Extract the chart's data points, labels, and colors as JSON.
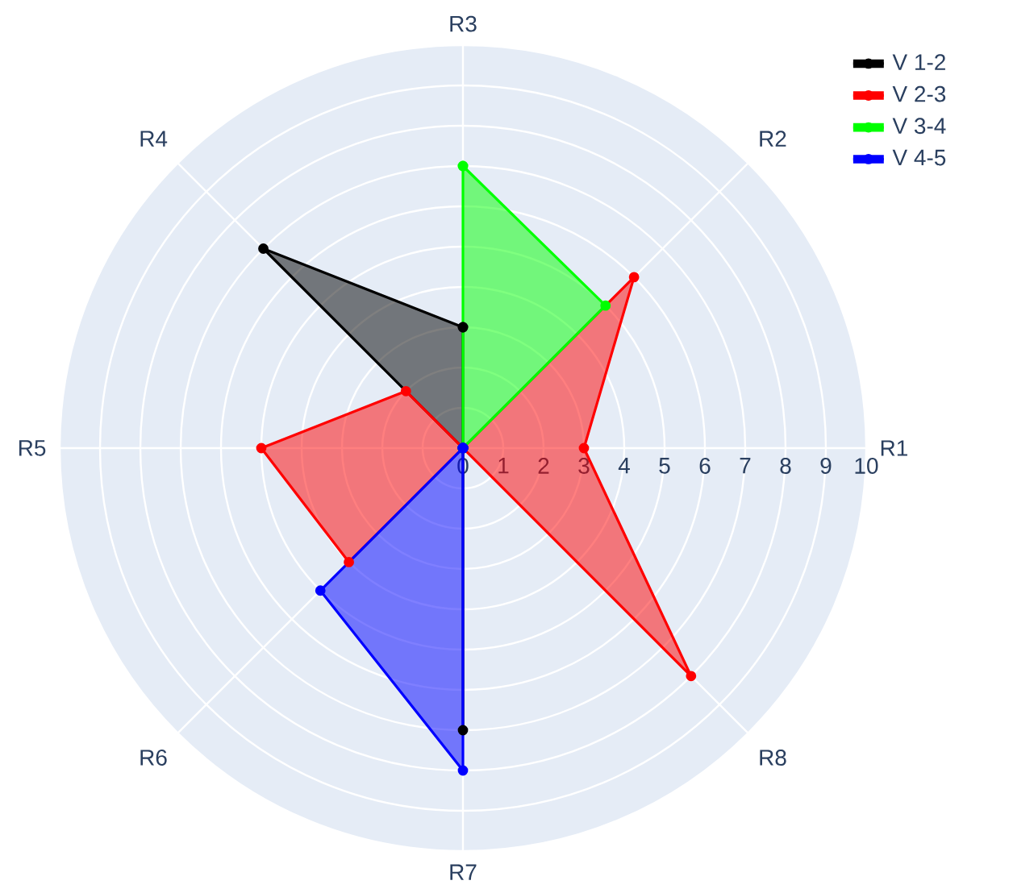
{
  "chart_data": {
    "type": "radar",
    "categories": [
      "R3",
      "R2",
      "R1",
      "R8",
      "R7",
      "R6",
      "R5",
      "R4"
    ],
    "series": [
      {
        "name": "V 1-2",
        "color": "#000000",
        "values": [
          3,
          0,
          0,
          0,
          7,
          0,
          0,
          7
        ]
      },
      {
        "name": "V 2-3",
        "color": "#ff0000",
        "values": [
          0,
          6,
          3,
          8,
          0,
          4,
          5,
          2
        ]
      },
      {
        "name": "V 3-4",
        "color": "#00ff00",
        "values": [
          7,
          5,
          0,
          0,
          0,
          0,
          0,
          0
        ]
      },
      {
        "name": "V 4-5",
        "color": "#0000ff",
        "values": [
          0,
          0,
          0,
          0,
          8,
          5,
          0,
          0
        ]
      }
    ],
    "ylim": [
      0,
      10
    ],
    "yticks": [
      0,
      1,
      2,
      3,
      4,
      5,
      6,
      7,
      8,
      9,
      10
    ],
    "grid": true,
    "legend": "top right",
    "marker": "circle"
  }
}
